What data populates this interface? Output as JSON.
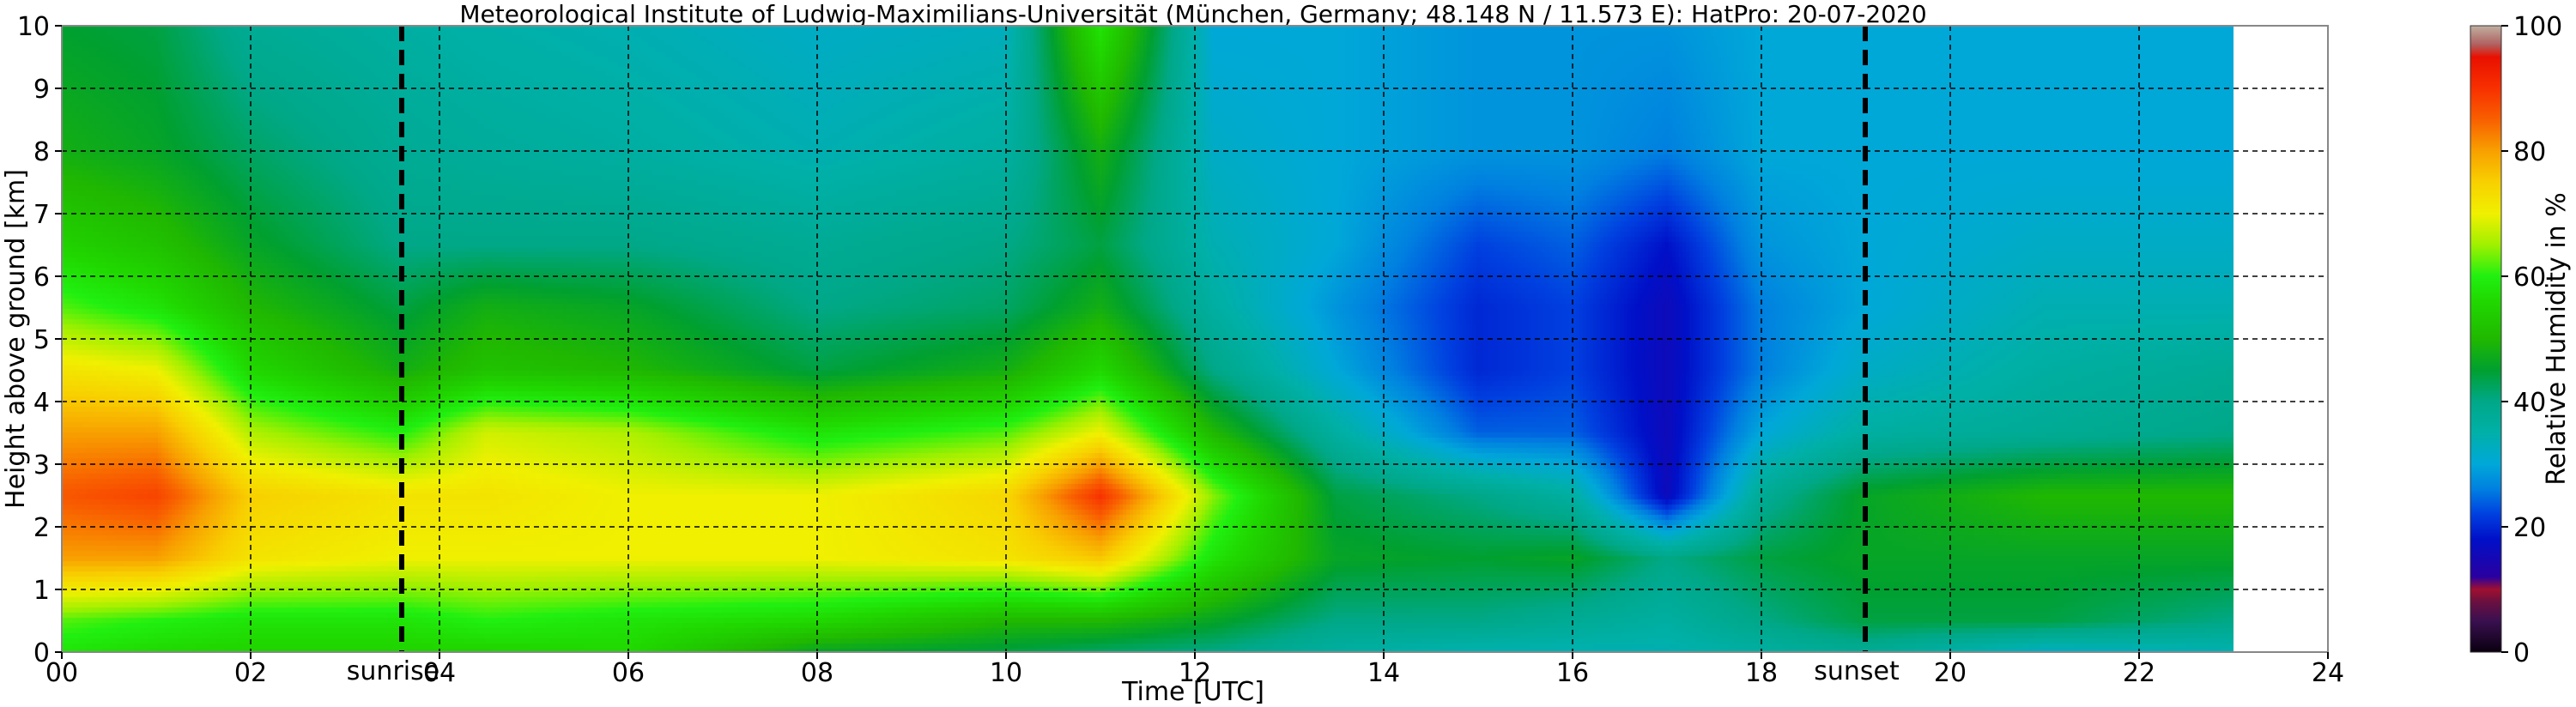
{
  "chart_data": {
    "type": "heatmap",
    "title": "Meteorological Institute of Ludwig-Maximilians-Universität (München, Germany; 48.148 N / 11.573 E):    HatPro: 20-07-2020",
    "xlabel": "Time [UTC]",
    "ylabel": "Height above ground [km]",
    "xlim": [
      0,
      24
    ],
    "ylim": [
      0,
      10
    ],
    "x_ticks": [
      "00",
      "02",
      "04",
      "06",
      "08",
      "10",
      "12",
      "14",
      "16",
      "18",
      "20",
      "22",
      "24"
    ],
    "y_ticks": [
      "0",
      "1",
      "2",
      "3",
      "4",
      "5",
      "6",
      "7",
      "8",
      "9",
      "10"
    ],
    "grid": true,
    "data_end_hour": 23.0,
    "colorbar": {
      "label": "Relative Humidity in %",
      "ticks": [
        "0",
        "20",
        "40",
        "60",
        "80",
        "100"
      ],
      "range": [
        0,
        100
      ],
      "stops": [
        {
          "v": 0,
          "c": "#0a0010"
        },
        {
          "v": 5,
          "c": "#3a1050"
        },
        {
          "v": 8,
          "c": "#6a1040"
        },
        {
          "v": 10,
          "c": "#a01030"
        },
        {
          "v": 12,
          "c": "#2a00a0"
        },
        {
          "v": 18,
          "c": "#0010c8"
        },
        {
          "v": 22,
          "c": "#0040e0"
        },
        {
          "v": 26,
          "c": "#0080e0"
        },
        {
          "v": 30,
          "c": "#00a8d8"
        },
        {
          "v": 35,
          "c": "#00b0a8"
        },
        {
          "v": 40,
          "c": "#00a888"
        },
        {
          "v": 45,
          "c": "#00a030"
        },
        {
          "v": 50,
          "c": "#20b800"
        },
        {
          "v": 56,
          "c": "#20d800"
        },
        {
          "v": 60,
          "c": "#20f010"
        },
        {
          "v": 65,
          "c": "#a0f000"
        },
        {
          "v": 70,
          "c": "#f0f000"
        },
        {
          "v": 75,
          "c": "#f8d000"
        },
        {
          "v": 80,
          "c": "#f8a000"
        },
        {
          "v": 85,
          "c": "#f86000"
        },
        {
          "v": 90,
          "c": "#f83000"
        },
        {
          "v": 95,
          "c": "#e81000"
        },
        {
          "v": 97,
          "c": "#b06060"
        },
        {
          "v": 100,
          "c": "#c0b0a0"
        }
      ]
    },
    "annotations": [
      {
        "label": "sunrise",
        "x": 3.6
      },
      {
        "label": "sunset",
        "x": 19.1
      }
    ],
    "rh_profiles": [
      {
        "t": 0.0,
        "z": [
          0,
          0.5,
          1.5,
          2.5,
          3.5,
          4.5,
          5.5,
          6.5,
          8,
          10
        ],
        "rh": [
          58,
          62,
          80,
          86,
          80,
          72,
          62,
          55,
          48,
          45
        ]
      },
      {
        "t": 1.0,
        "z": [
          0,
          0.5,
          1.5,
          2.5,
          3.5,
          4.5,
          5.5,
          6.5,
          8,
          10
        ],
        "rh": [
          56,
          60,
          80,
          88,
          80,
          70,
          58,
          52,
          46,
          44
        ]
      },
      {
        "t": 2.0,
        "z": [
          0,
          0.5,
          1.5,
          2.5,
          3.5,
          4.5,
          5.5,
          6.5,
          8,
          10
        ],
        "rh": [
          55,
          58,
          72,
          75,
          66,
          56,
          50,
          46,
          42,
          38
        ]
      },
      {
        "t": 3.6,
        "z": [
          0,
          0.5,
          1.5,
          2.5,
          3.5,
          4.5,
          5.5,
          6.5,
          8,
          10
        ],
        "rh": [
          55,
          58,
          70,
          72,
          60,
          48,
          44,
          40,
          38,
          36
        ]
      },
      {
        "t": 4.5,
        "z": [
          0,
          0.5,
          1.5,
          2.5,
          3.5,
          4.5,
          5.5,
          6.5,
          8,
          10
        ],
        "rh": [
          55,
          60,
          70,
          72,
          68,
          52,
          48,
          40,
          37,
          35
        ]
      },
      {
        "t": 6.0,
        "z": [
          0,
          0.5,
          1.5,
          2.5,
          3.5,
          4.5,
          5.5,
          6.5,
          8,
          10
        ],
        "rh": [
          56,
          58,
          70,
          70,
          66,
          50,
          46,
          40,
          36,
          34
        ]
      },
      {
        "t": 8.0,
        "z": [
          0,
          0.5,
          1.5,
          2.5,
          3.5,
          4.5,
          5.5,
          6.5,
          8,
          10
        ],
        "rh": [
          46,
          56,
          70,
          70,
          58,
          44,
          40,
          38,
          34,
          32
        ]
      },
      {
        "t": 10.0,
        "z": [
          0,
          0.5,
          1.5,
          2.5,
          3.5,
          4.5,
          5.5,
          6.5,
          8,
          10
        ],
        "rh": [
          44,
          50,
          72,
          74,
          62,
          48,
          42,
          40,
          36,
          33
        ]
      },
      {
        "t": 11.0,
        "z": [
          0,
          0.5,
          1.5,
          2.5,
          3.5,
          4.5,
          5.5,
          6.5,
          8,
          10
        ],
        "rh": [
          42,
          50,
          76,
          90,
          70,
          56,
          48,
          44,
          48,
          58
        ]
      },
      {
        "t": 12.2,
        "z": [
          0,
          0.5,
          1.5,
          2.5,
          3.5,
          4.5,
          5.5,
          6.5,
          8,
          10
        ],
        "rh": [
          40,
          46,
          58,
          64,
          50,
          40,
          36,
          34,
          32,
          30
        ]
      },
      {
        "t": 13.5,
        "z": [
          0,
          0.5,
          1.5,
          2.5,
          3.5,
          4.5,
          5.5,
          6.5,
          8,
          10
        ],
        "rh": [
          36,
          40,
          46,
          44,
          36,
          30,
          28,
          30,
          30,
          30
        ]
      },
      {
        "t": 15.0,
        "z": [
          0,
          0.5,
          1.5,
          2.5,
          3.5,
          4.5,
          5.5,
          6.5,
          8,
          10
        ],
        "rh": [
          34,
          40,
          45,
          40,
          24,
          20,
          20,
          22,
          28,
          28
        ]
      },
      {
        "t": 16.0,
        "z": [
          0,
          0.5,
          1.5,
          2.5,
          3.5,
          4.5,
          5.5,
          6.5,
          8,
          10
        ],
        "rh": [
          34,
          38,
          46,
          36,
          24,
          22,
          22,
          24,
          28,
          28
        ]
      },
      {
        "t": 17.0,
        "z": [
          0,
          0.5,
          1.5,
          2.5,
          3.5,
          4.5,
          5.5,
          6.5,
          8,
          10
        ],
        "rh": [
          34,
          36,
          40,
          16,
          16,
          16,
          16,
          18,
          26,
          28
        ]
      },
      {
        "t": 18.0,
        "z": [
          0,
          0.5,
          1.5,
          2.5,
          3.5,
          4.5,
          5.5,
          6.5,
          8,
          10
        ],
        "rh": [
          36,
          40,
          44,
          38,
          30,
          26,
          26,
          28,
          30,
          30
        ]
      },
      {
        "t": 19.1,
        "z": [
          0,
          0.5,
          1.5,
          2.5,
          3.5,
          4.5,
          5.5,
          6.5,
          8,
          10
        ],
        "rh": [
          38,
          44,
          46,
          46,
          36,
          32,
          30,
          30,
          30,
          30
        ]
      },
      {
        "t": 21.0,
        "z": [
          0,
          0.5,
          1.5,
          2.5,
          3.5,
          4.5,
          5.5,
          6.5,
          8,
          10
        ],
        "rh": [
          32,
          44,
          46,
          50,
          38,
          36,
          34,
          32,
          30,
          30
        ]
      },
      {
        "t": 23.0,
        "z": [
          0,
          0.5,
          1.5,
          2.5,
          3.5,
          4.5,
          5.5,
          6.5,
          8,
          10
        ],
        "rh": [
          34,
          40,
          46,
          50,
          40,
          38,
          34,
          32,
          30,
          30
        ]
      }
    ]
  }
}
